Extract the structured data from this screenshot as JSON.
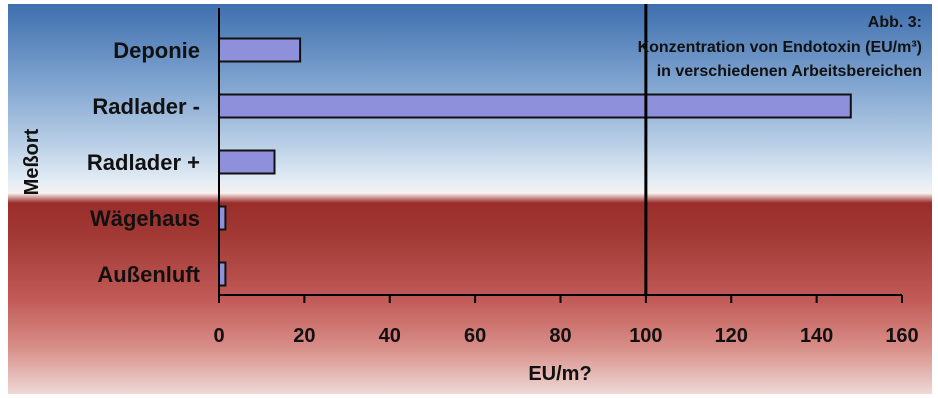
{
  "chart_data": {
    "type": "bar",
    "orientation": "horizontal",
    "categories": [
      "Deponie",
      "Radlader -",
      "Radlader +",
      "Wägehaus",
      "Außenluft"
    ],
    "values": [
      19,
      148,
      13,
      1.5,
      1.5
    ],
    "xlabel": "EU/m?",
    "ylabel": "Meßort",
    "xlim": [
      0,
      160
    ],
    "xticks": [
      0,
      20,
      40,
      60,
      80,
      100,
      120,
      140,
      160
    ],
    "reference_line": 100,
    "annotation": {
      "line1": "Abb. 3:",
      "line2": "Konzentration von Endotoxin (EU/m³)",
      "line3": "in verschiedenen Arbeitsbereichen"
    },
    "bar_color": "#8f90dc",
    "bar_outline": "#111111"
  }
}
